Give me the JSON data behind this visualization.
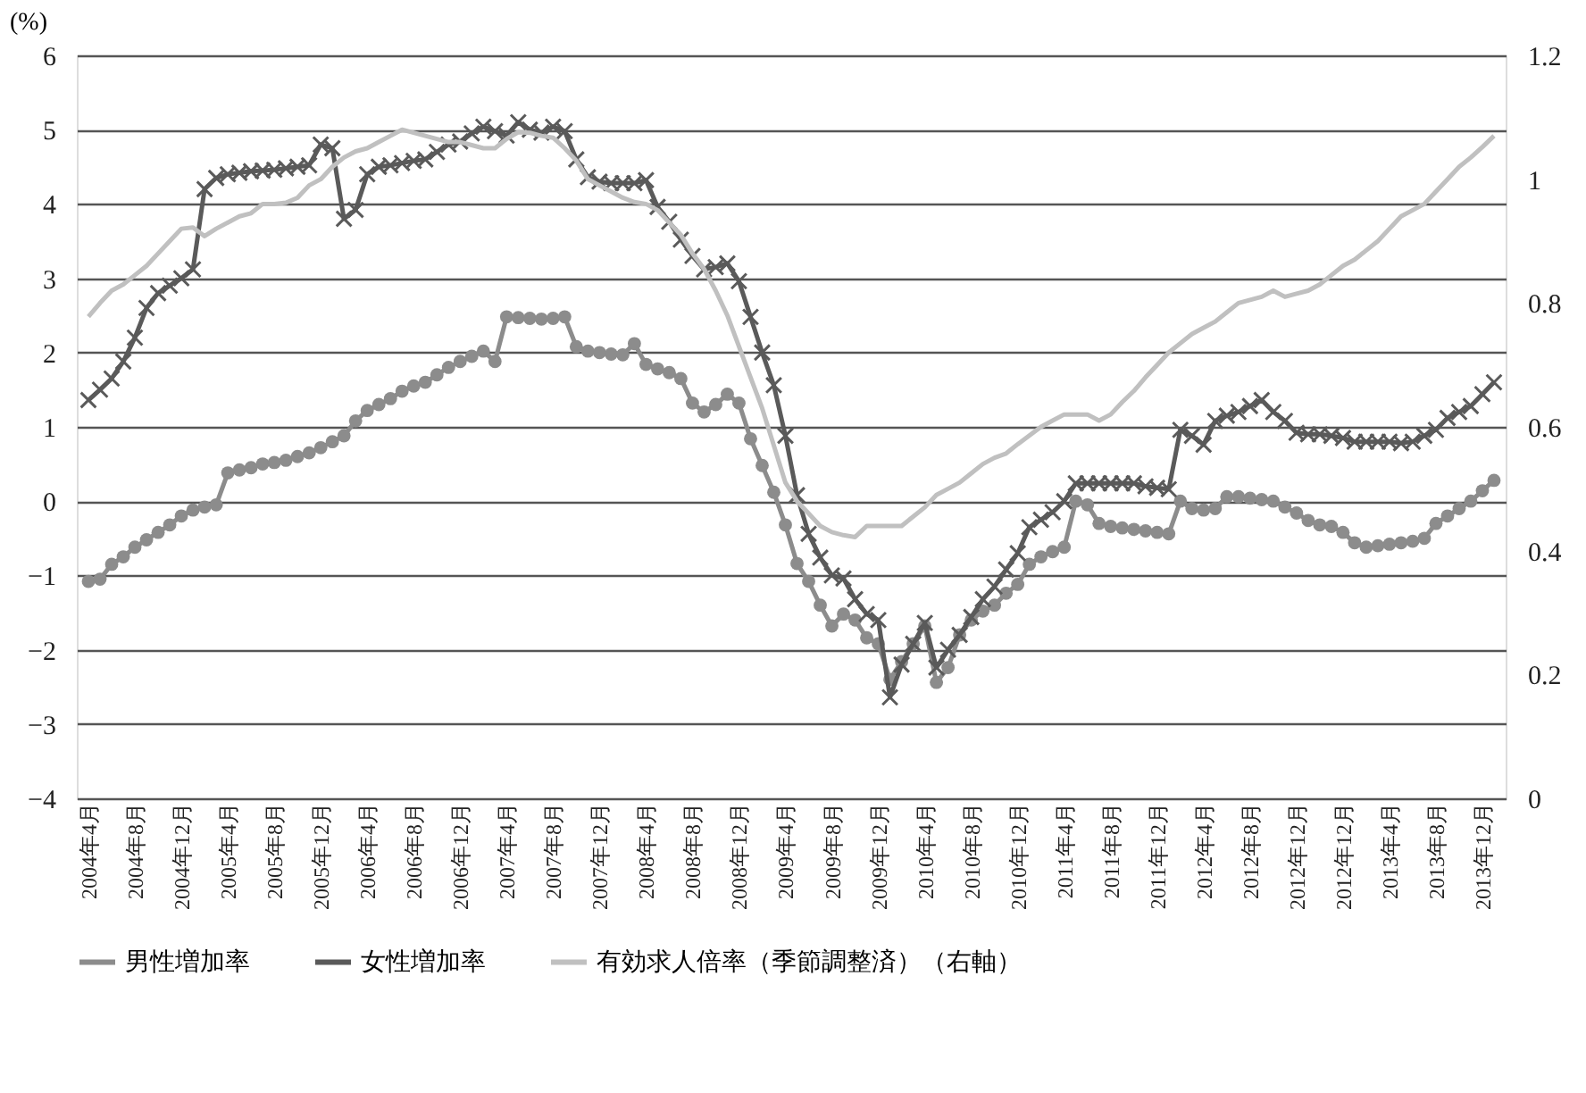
{
  "chart_data": {
    "type": "line",
    "ylabel": "(%)",
    "categories": [
      "2004年4月",
      null,
      null,
      null,
      "2004年8月",
      null,
      null,
      null,
      "2004年12月",
      null,
      null,
      null,
      "2005年4月",
      null,
      null,
      null,
      "2005年8月",
      null,
      null,
      null,
      "2005年12月",
      null,
      null,
      null,
      "2006年4月",
      null,
      null,
      null,
      "2006年8月",
      null,
      null,
      null,
      "2006年12月",
      null,
      null,
      null,
      "2007年4月",
      null,
      null,
      null,
      "2007年8月",
      null,
      null,
      null,
      "2007年12月",
      null,
      null,
      null,
      "2008年4月",
      null,
      null,
      null,
      "2008年8月",
      null,
      null,
      null,
      "2008年12月",
      null,
      null,
      null,
      "2009年4月",
      null,
      null,
      null,
      "2009年8月",
      null,
      null,
      null,
      "2009年12月",
      null,
      null,
      null,
      "2010年4月",
      null,
      null,
      null,
      "2010年8月",
      null,
      null,
      null,
      "2010年12月",
      null,
      null,
      null,
      "2011年4月",
      null,
      null,
      null,
      "2011年8月",
      null,
      null,
      null,
      "2011年12月",
      null,
      null,
      null,
      "2012年4月",
      null,
      null,
      null,
      "2012年8月",
      null,
      null,
      null,
      "2012年12月",
      null,
      null,
      null,
      "2012年12月",
      null,
      null,
      null,
      "2013年4月",
      null,
      null,
      null,
      "2013年8月",
      null,
      null,
      null,
      "2013年12月",
      null
    ],
    "series": [
      {
        "name": "男性増加率",
        "color": "#8c8c8c",
        "marker": "circle",
        "values": [
          -1.08,
          -1.05,
          -0.85,
          -0.75,
          -0.62,
          -0.52,
          -0.42,
          -0.32,
          -0.2,
          -0.12,
          -0.08,
          -0.05,
          0.38,
          0.42,
          0.45,
          0.5,
          0.52,
          0.55,
          0.6,
          0.65,
          0.72,
          0.8,
          0.88,
          1.08,
          1.22,
          1.3,
          1.38,
          1.48,
          1.55,
          1.6,
          1.7,
          1.8,
          1.88,
          1.95,
          2.02,
          1.88,
          2.48,
          2.47,
          2.46,
          2.45,
          2.46,
          2.48,
          2.08,
          2.02,
          2.0,
          1.98,
          1.97,
          2.12,
          1.84,
          1.78,
          1.73,
          1.65,
          1.32,
          1.2,
          1.3,
          1.44,
          1.32,
          0.84,
          0.48,
          0.12,
          -0.32,
          -0.84,
          -1.08,
          -1.4,
          -1.68,
          -1.52,
          -1.6,
          -1.84,
          -1.92,
          -2.4,
          -2.16,
          -1.92,
          -1.68,
          -2.44,
          -2.24,
          -1.8,
          -1.6,
          -1.48,
          -1.4,
          -1.24,
          -1.12,
          -0.85,
          -0.75,
          -0.68,
          -0.62,
          0.0,
          -0.05,
          -0.3,
          -0.34,
          -0.36,
          -0.38,
          -0.4,
          -0.42,
          -0.44,
          0.0,
          -0.1,
          -0.12,
          -0.1,
          0.06,
          0.06,
          0.04,
          0.02,
          0.0,
          -0.08,
          -0.16,
          -0.26,
          -0.32,
          -0.34,
          -0.42,
          -0.56,
          -0.62,
          -0.6,
          -0.58,
          -0.56,
          -0.54,
          -0.5,
          -0.3,
          -0.2,
          -0.1,
          0.0,
          0.14,
          0.28
        ]
      },
      {
        "name": "女性増加率",
        "color": "#5a5a5a",
        "marker": "cross",
        "values": [
          1.36,
          1.5,
          1.65,
          1.88,
          2.2,
          2.6,
          2.8,
          2.9,
          3.0,
          3.12,
          4.2,
          4.35,
          4.4,
          4.42,
          4.44,
          4.45,
          4.46,
          4.48,
          4.5,
          4.52,
          4.8,
          4.75,
          3.8,
          3.92,
          4.4,
          4.5,
          4.52,
          4.55,
          4.58,
          4.6,
          4.7,
          4.8,
          4.84,
          4.95,
          5.04,
          4.98,
          4.92,
          5.1,
          5.0,
          4.96,
          5.04,
          4.98,
          4.6,
          4.36,
          4.3,
          4.28,
          4.28,
          4.28,
          4.32,
          3.96,
          3.76,
          3.52,
          3.3,
          3.12,
          3.15,
          3.2,
          2.96,
          2.48,
          2.0,
          1.56,
          0.88,
          0.08,
          -0.44,
          -0.76,
          -1.0,
          -1.04,
          -1.32,
          -1.52,
          -1.6,
          -2.64,
          -2.2,
          -1.92,
          -1.64,
          -2.24,
          -2.0,
          -1.8,
          -1.56,
          -1.32,
          -1.15,
          -0.92,
          -0.7,
          -0.35,
          -0.25,
          -0.15,
          0.0,
          0.24,
          0.24,
          0.24,
          0.24,
          0.24,
          0.24,
          0.2,
          0.18,
          0.16,
          0.96,
          0.88,
          0.76,
          1.08,
          1.15,
          1.2,
          1.28,
          1.36,
          1.2,
          1.08,
          0.92,
          0.9,
          0.9,
          0.88,
          0.85,
          0.8,
          0.8,
          0.8,
          0.8,
          0.78,
          0.8,
          0.88,
          0.96,
          1.12,
          1.2,
          1.28,
          1.44,
          1.6
        ]
      },
      {
        "name": "有効求人倍率（季節調整済）（右軸）",
        "color": "#c0c0c0",
        "marker": "none",
        "axis": "y2",
        "values": [
          0.778,
          0.8,
          0.82,
          0.83,
          0.845,
          0.86,
          0.88,
          0.9,
          0.92,
          0.922,
          0.908,
          0.92,
          0.93,
          0.94,
          0.945,
          0.96,
          0.96,
          0.962,
          0.97,
          0.99,
          1.0,
          1.02,
          1.035,
          1.045,
          1.05,
          1.06,
          1.07,
          1.08,
          1.075,
          1.07,
          1.065,
          1.06,
          1.06,
          1.055,
          1.05,
          1.05,
          1.065,
          1.076,
          1.075,
          1.07,
          1.067,
          1.05,
          1.03,
          1.0,
          0.99,
          0.98,
          0.97,
          0.963,
          0.96,
          0.95,
          0.93,
          0.91,
          0.88,
          0.855,
          0.82,
          0.78,
          0.73,
          0.68,
          0.63,
          0.57,
          0.51,
          0.48,
          0.46,
          0.44,
          0.43,
          0.425,
          0.422,
          0.44,
          0.44,
          0.44,
          0.44,
          0.455,
          0.47,
          0.49,
          0.5,
          0.51,
          0.525,
          0.54,
          0.55,
          0.557,
          0.572,
          0.586,
          0.6,
          0.61,
          0.62,
          0.62,
          0.62,
          0.61,
          0.62,
          0.64,
          0.658,
          0.68,
          0.7,
          0.72,
          0.735,
          0.75,
          0.76,
          0.77,
          0.785,
          0.8,
          0.805,
          0.81,
          0.82,
          0.81,
          0.815,
          0.82,
          0.83,
          0.845,
          0.86,
          0.87,
          0.885,
          0.9,
          0.92,
          0.94,
          0.95,
          0.96,
          0.98,
          1.0,
          1.02,
          1.035,
          1.052,
          1.07
        ]
      }
    ],
    "ylim": [
      -4,
      6
    ],
    "yticks": [
      {
        "value": -4,
        "label": "−4"
      },
      {
        "value": -3,
        "label": "−3"
      },
      {
        "value": -2,
        "label": "−2"
      },
      {
        "value": -1,
        "label": "−1"
      },
      0,
      1,
      2,
      3,
      4,
      5,
      6
    ],
    "y2lim": [
      0,
      1.2
    ],
    "y2ticks": [
      0,
      0.2,
      0.4,
      0.6,
      0.8,
      1,
      1.2
    ],
    "grid": "y",
    "legend": "bottom",
    "line_style": "solid"
  }
}
